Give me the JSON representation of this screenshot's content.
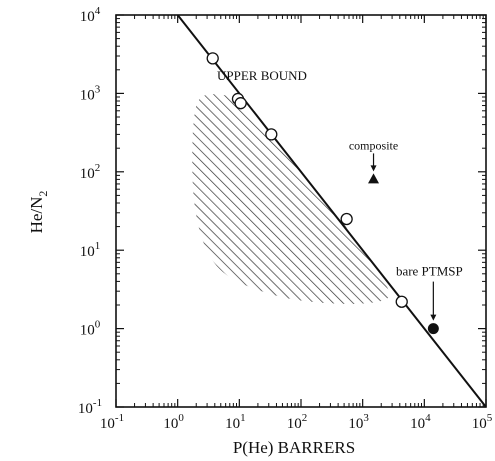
{
  "chart_data": {
    "type": "scatter",
    "xlabel": "P(He) BARRERS",
    "ylabel_main": "He/N",
    "ylabel_sub": "2",
    "x_scale": "log",
    "y_scale": "log",
    "xlim": [
      0.1,
      100000
    ],
    "ylim": [
      0.1,
      10000
    ],
    "x_ticks": [
      {
        "value": 0.1,
        "base": "10",
        "exp": "-1"
      },
      {
        "value": 1,
        "base": "10",
        "exp": "0"
      },
      {
        "value": 10,
        "base": "10",
        "exp": "1"
      },
      {
        "value": 100,
        "base": "10",
        "exp": "2"
      },
      {
        "value": 1000,
        "base": "10",
        "exp": "3"
      },
      {
        "value": 10000,
        "base": "10",
        "exp": "4"
      },
      {
        "value": 100000,
        "base": "10",
        "exp": "5"
      }
    ],
    "y_ticks": [
      {
        "value": 0.1,
        "base": "10",
        "exp": "-1"
      },
      {
        "value": 1,
        "base": "10",
        "exp": "0"
      },
      {
        "value": 10,
        "base": "10",
        "exp": "1"
      },
      {
        "value": 100,
        "base": "10",
        "exp": "2"
      },
      {
        "value": 1000,
        "base": "10",
        "exp": "3"
      },
      {
        "value": 10000,
        "base": "10",
        "exp": "4"
      }
    ],
    "upper_bound_line": {
      "label": "UPPER BOUND",
      "points": [
        [
          1,
          10000
        ],
        [
          100000,
          0.1
        ]
      ]
    },
    "open_circles": [
      {
        "x": 3.7,
        "y": 2800
      },
      {
        "x": 9.5,
        "y": 850
      },
      {
        "x": 10.5,
        "y": 750
      },
      {
        "x": 33,
        "y": 300
      },
      {
        "x": 550,
        "y": 25
      },
      {
        "x": 4300,
        "y": 2.2
      }
    ],
    "composite_point": {
      "label": "composite",
      "x": 1500,
      "y": 80
    },
    "bare_point": {
      "label": "bare PTMSP",
      "x": 14000,
      "y": 1.0
    },
    "hatched_region": {
      "outline": [
        [
          2.2,
          950
        ],
        [
          5,
          1000
        ],
        [
          10,
          820
        ],
        [
          30,
          300
        ],
        [
          100,
          100
        ],
        [
          300,
          38
        ],
        [
          1000,
          10
        ],
        [
          2500,
          3.5
        ],
        [
          3000,
          2.4
        ],
        [
          1000,
          2.0
        ],
        [
          100,
          2.2
        ],
        [
          20,
          3.0
        ],
        [
          5,
          5
        ],
        [
          2.5,
          12
        ],
        [
          1.8,
          40
        ],
        [
          1.7,
          150
        ],
        [
          1.8,
          500
        ]
      ]
    }
  }
}
